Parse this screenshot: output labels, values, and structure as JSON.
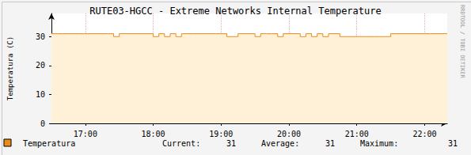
{
  "chart_data": {
    "type": "line",
    "title": "RUTE03-HGCC - Extreme Networks Internal Temperature",
    "y_label": "Temperatura (C)",
    "annotations": [
      "RRDTOOL / TOBI OETIKER"
    ],
    "x": [
      990,
      995,
      1000,
      1005,
      1010,
      1015,
      1020,
      1025,
      1030,
      1035,
      1040,
      1045,
      1050,
      1055,
      1060,
      1065,
      1070,
      1075,
      1080,
      1085,
      1090,
      1095,
      1100,
      1105,
      1110,
      1115,
      1120,
      1125,
      1130,
      1135,
      1140,
      1145,
      1150,
      1155,
      1160,
      1165,
      1170,
      1175,
      1180,
      1185,
      1190,
      1195,
      1200,
      1205,
      1210,
      1215,
      1220,
      1225,
      1230,
      1235,
      1240,
      1245,
      1250,
      1255,
      1260,
      1265,
      1270,
      1275,
      1280,
      1285,
      1290,
      1295,
      1300,
      1305,
      1310,
      1315,
      1320,
      1325,
      1330,
      1335,
      1340
    ],
    "series": [
      {
        "name": "Temperatura",
        "color": "#ea8c1a",
        "values": [
          31,
          31,
          31,
          31,
          31,
          31,
          31,
          31,
          31,
          31,
          31,
          31,
          30,
          31,
          31,
          31,
          31,
          31,
          31,
          30,
          31,
          30,
          31,
          30,
          31,
          31,
          31,
          31,
          31,
          31,
          31,
          31,
          30,
          30,
          31,
          31,
          31,
          30,
          31,
          31,
          31,
          30,
          31,
          31,
          31,
          30,
          31,
          30,
          31,
          30,
          31,
          31,
          30,
          30,
          30,
          30,
          30,
          30,
          30,
          30,
          30,
          31,
          31,
          31,
          31,
          31,
          31,
          31,
          31,
          31,
          31
        ]
      }
    ],
    "summary": [
      {
        "label": "Current:",
        "value": 31
      },
      {
        "label": "Average:",
        "value": 31
      },
      {
        "label": "Maximum:",
        "value": 31
      }
    ],
    "xlim": [
      990,
      1340
    ],
    "xticks": [
      {
        "value": 1020,
        "label": "17:00"
      },
      {
        "value": 1080,
        "label": "18:00"
      },
      {
        "value": 1140,
        "label": "19:00"
      },
      {
        "value": 1200,
        "label": "20:00"
      },
      {
        "value": 1260,
        "label": "21:00"
      },
      {
        "value": 1320,
        "label": "22:00"
      }
    ],
    "ylim": [
      0,
      38
    ],
    "yticks": [
      0,
      10,
      20,
      30
    ],
    "grid": true,
    "line_style": "step"
  }
}
